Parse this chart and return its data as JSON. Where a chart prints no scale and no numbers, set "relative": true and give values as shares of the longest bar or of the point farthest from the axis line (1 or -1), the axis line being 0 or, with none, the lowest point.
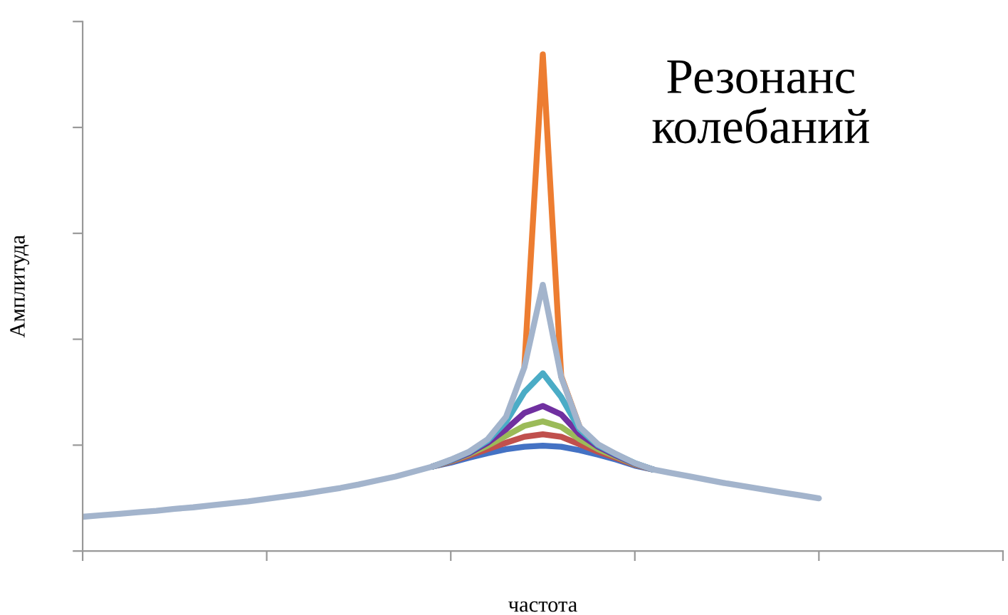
{
  "chart_data": {
    "type": "line",
    "title": "Резонанс\nколебаний",
    "xlabel": "частота",
    "ylabel": "Амплитуда",
    "relative": true,
    "tick_labels": false,
    "grid": false,
    "legend": false,
    "marker": "none",
    "line_style": "solid",
    "categories": [
      null,
      null,
      null,
      null,
      null,
      null,
      null,
      null,
      null,
      null,
      null,
      null,
      null,
      null,
      null,
      null,
      null,
      null,
      null,
      null,
      null,
      null,
      null,
      null,
      null,
      null,
      null,
      null,
      null,
      null,
      null,
      null,
      null,
      null,
      null,
      null,
      null,
      null,
      null,
      null,
      null,
      null,
      null,
      null,
      null,
      null,
      null,
      null,
      null,
      null,
      null
    ],
    "series": [
      {
        "color": "#ed7d31",
        "values": [
          null,
          null,
          null,
          null,
          null,
          null,
          null,
          null,
          null,
          null,
          null,
          null,
          null,
          null,
          null,
          null,
          null,
          null,
          null,
          null,
          null,
          null,
          null,
          null,
          0.372,
          1.0,
          0.352,
          0.25,
          null,
          null,
          null,
          null,
          null,
          null,
          null,
          null,
          null,
          null,
          null,
          null,
          null,
          null,
          null,
          null,
          null,
          null,
          null,
          null,
          null,
          null,
          null
        ]
      },
      {
        "color": "#4472c4",
        "values": [
          null,
          null,
          null,
          null,
          null,
          null,
          null,
          null,
          null,
          null,
          null,
          null,
          null,
          null,
          null,
          null,
          null,
          null,
          null,
          0.17,
          0.178,
          0.188,
          0.197,
          0.205,
          0.21,
          0.212,
          0.21,
          0.203,
          0.194,
          0.184,
          0.172,
          0.164,
          null,
          null,
          null,
          null,
          null,
          null,
          null,
          null,
          null,
          null,
          null,
          null,
          null,
          null,
          null,
          null,
          null,
          null,
          null
        ]
      },
      {
        "color": "#c0504d",
        "values": [
          null,
          null,
          null,
          null,
          null,
          null,
          null,
          null,
          null,
          null,
          null,
          null,
          null,
          null,
          null,
          null,
          null,
          null,
          null,
          0.17,
          0.18,
          0.192,
          0.205,
          0.218,
          0.23,
          0.235,
          0.23,
          0.215,
          0.2,
          0.187,
          0.174,
          0.164,
          null,
          null,
          null,
          null,
          null,
          null,
          null,
          null,
          null,
          null,
          null,
          null,
          null,
          null,
          null,
          null,
          null,
          null,
          null
        ]
      },
      {
        "color": "#9bbb59",
        "values": [
          null,
          null,
          null,
          null,
          null,
          null,
          null,
          null,
          null,
          null,
          null,
          null,
          null,
          null,
          null,
          null,
          null,
          null,
          null,
          0.17,
          0.181,
          0.195,
          0.212,
          0.232,
          0.252,
          0.261,
          0.25,
          0.225,
          0.205,
          0.19,
          0.175,
          0.164,
          null,
          null,
          null,
          null,
          null,
          null,
          null,
          null,
          null,
          null,
          null,
          null,
          null,
          null,
          null,
          null,
          null,
          null,
          null
        ]
      },
      {
        "color": "#7030a0",
        "values": [
          null,
          null,
          null,
          null,
          null,
          null,
          null,
          null,
          null,
          null,
          null,
          null,
          null,
          null,
          null,
          null,
          null,
          null,
          null,
          0.17,
          0.182,
          0.197,
          0.218,
          0.245,
          0.278,
          0.292,
          0.275,
          0.235,
          0.21,
          0.192,
          0.176,
          0.164,
          null,
          null,
          null,
          null,
          null,
          null,
          null,
          null,
          null,
          null,
          null,
          null,
          null,
          null,
          null,
          null,
          null,
          null,
          null
        ]
      },
      {
        "color": "#4bacc6",
        "values": [
          null,
          null,
          null,
          null,
          null,
          null,
          null,
          null,
          null,
          null,
          null,
          null,
          null,
          null,
          null,
          null,
          null,
          null,
          null,
          0.17,
          0.183,
          0.199,
          0.222,
          0.26,
          0.32,
          0.358,
          0.31,
          0.245,
          0.213,
          0.194,
          0.177,
          0.164,
          null,
          null,
          null,
          null,
          null,
          null,
          null,
          null,
          null,
          null,
          null,
          null,
          null,
          null,
          null,
          null,
          null,
          null,
          null
        ]
      },
      {
        "color": "#a3b4cc",
        "values": [
          0.069,
          0.072,
          0.075,
          0.078,
          0.081,
          0.085,
          0.088,
          0.092,
          0.096,
          0.1,
          0.105,
          0.11,
          0.115,
          0.121,
          0.127,
          0.134,
          0.142,
          0.15,
          0.16,
          0.17,
          0.184,
          0.2,
          0.225,
          0.27,
          0.37,
          0.536,
          0.35,
          0.25,
          0.215,
          0.195,
          0.177,
          0.164,
          0.157,
          0.15,
          0.143,
          0.136,
          0.13,
          0.124,
          0.118,
          0.112,
          0.106,
          null,
          null,
          null,
          null,
          null,
          null,
          null,
          null,
          null,
          null
        ]
      }
    ]
  }
}
